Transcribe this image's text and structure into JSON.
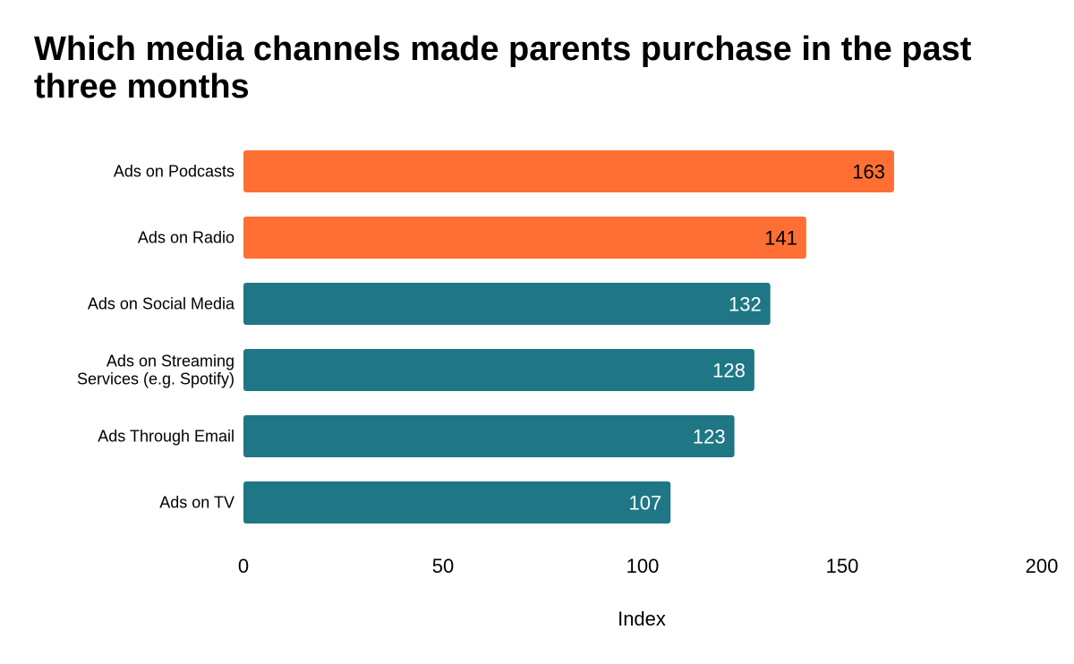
{
  "chart_data": {
    "type": "bar",
    "orientation": "horizontal",
    "title": "Which media channels made parents purchase in the past three months",
    "xlabel": "Index",
    "ylabel": "",
    "xlim": [
      0,
      200
    ],
    "xticks": [
      0,
      50,
      100,
      150,
      200
    ],
    "grid": false,
    "categories": [
      "Ads on Podcasts",
      "Ads on Radio",
      "Ads on Social Media",
      "Ads on Streaming Services (e.g. Spotify)",
      "Ads Through Email",
      "Ads on TV"
    ],
    "category_lines": [
      [
        "Ads on Podcasts"
      ],
      [
        "Ads on Radio"
      ],
      [
        "Ads on Social Media"
      ],
      [
        "Ads on Streaming",
        "Services (e.g. Spotify)"
      ],
      [
        "Ads Through Email"
      ],
      [
        "Ads on TV"
      ]
    ],
    "values": [
      163,
      141,
      132,
      128,
      123,
      107
    ],
    "highlighted": [
      true,
      true,
      false,
      false,
      false,
      false
    ],
    "colors": {
      "highlight": "#FF6F33",
      "default": "#1F7785",
      "highlight_label": "#000000",
      "default_label": "#FFFFFF",
      "axis_text": "#000000"
    }
  }
}
